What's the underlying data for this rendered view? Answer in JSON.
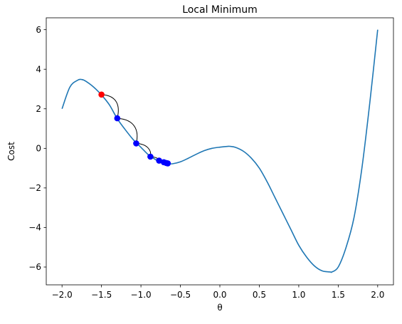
{
  "chart_data": {
    "type": "line",
    "title": "Local Minimum",
    "xlabel": "θ",
    "ylabel": "Cost",
    "xlim": [
      -2.2,
      2.2
    ],
    "ylim": [
      -6.9,
      6.6
    ],
    "xticks": [
      -2.0,
      -1.5,
      -1.0,
      -0.5,
      0.0,
      0.5,
      1.0,
      1.5,
      2.0
    ],
    "xtick_labels": [
      "−2.0",
      "−1.5",
      "−1.0",
      "−0.5",
      "0.0",
      "0.5",
      "1.0",
      "1.5",
      "2.0"
    ],
    "yticks": [
      -6,
      -4,
      -2,
      0,
      2,
      4,
      6
    ],
    "ytick_labels": [
      "−6",
      "−4",
      "−2",
      "0",
      "2",
      "4",
      "6"
    ],
    "grid": false,
    "colors": {
      "curve": "#1f77b4",
      "start_point": "#ff0000",
      "step_points": "#0000ff",
      "step_arcs": "#000000"
    },
    "curve": {
      "x": [
        -2.0,
        -1.9,
        -1.8,
        -1.75,
        -1.7,
        -1.6,
        -1.5,
        -1.4,
        -1.3,
        -1.2,
        -1.1,
        -1.05,
        -1.0,
        -0.9,
        -0.85,
        -0.8,
        -0.75,
        -0.7,
        -0.65,
        -0.6,
        -0.5,
        -0.4,
        -0.3,
        -0.2,
        -0.1,
        0.0,
        0.1,
        0.13,
        0.2,
        0.3,
        0.4,
        0.5,
        0.6,
        0.7,
        0.8,
        0.9,
        1.0,
        1.1,
        1.2,
        1.3,
        1.4,
        1.42,
        1.5,
        1.6,
        1.7,
        1.8,
        1.9,
        2.0
      ],
      "y": [
        2.0,
        3.1,
        3.45,
        3.48,
        3.4,
        3.1,
        2.7,
        2.2,
        1.5,
        0.95,
        0.45,
        0.25,
        0.05,
        -0.35,
        -0.48,
        -0.6,
        -0.68,
        -0.74,
        -0.77,
        -0.78,
        -0.68,
        -0.5,
        -0.3,
        -0.12,
        0.0,
        0.06,
        0.1,
        0.1,
        0.05,
        -0.15,
        -0.5,
        -1.0,
        -1.7,
        -2.5,
        -3.3,
        -4.1,
        -4.9,
        -5.5,
        -5.95,
        -6.2,
        -6.25,
        -6.25,
        -6.0,
        -5.0,
        -3.5,
        -1.0,
        2.3,
        6.0
      ]
    },
    "start_point": {
      "x": -1.5,
      "y": 2.72
    },
    "steps": {
      "x": [
        -1.5,
        -1.3,
        -1.06,
        -0.88,
        -0.77,
        -0.71,
        -0.68,
        -0.66
      ],
      "y": [
        2.72,
        1.52,
        0.25,
        -0.42,
        -0.62,
        -0.7,
        -0.74,
        -0.76
      ]
    }
  }
}
